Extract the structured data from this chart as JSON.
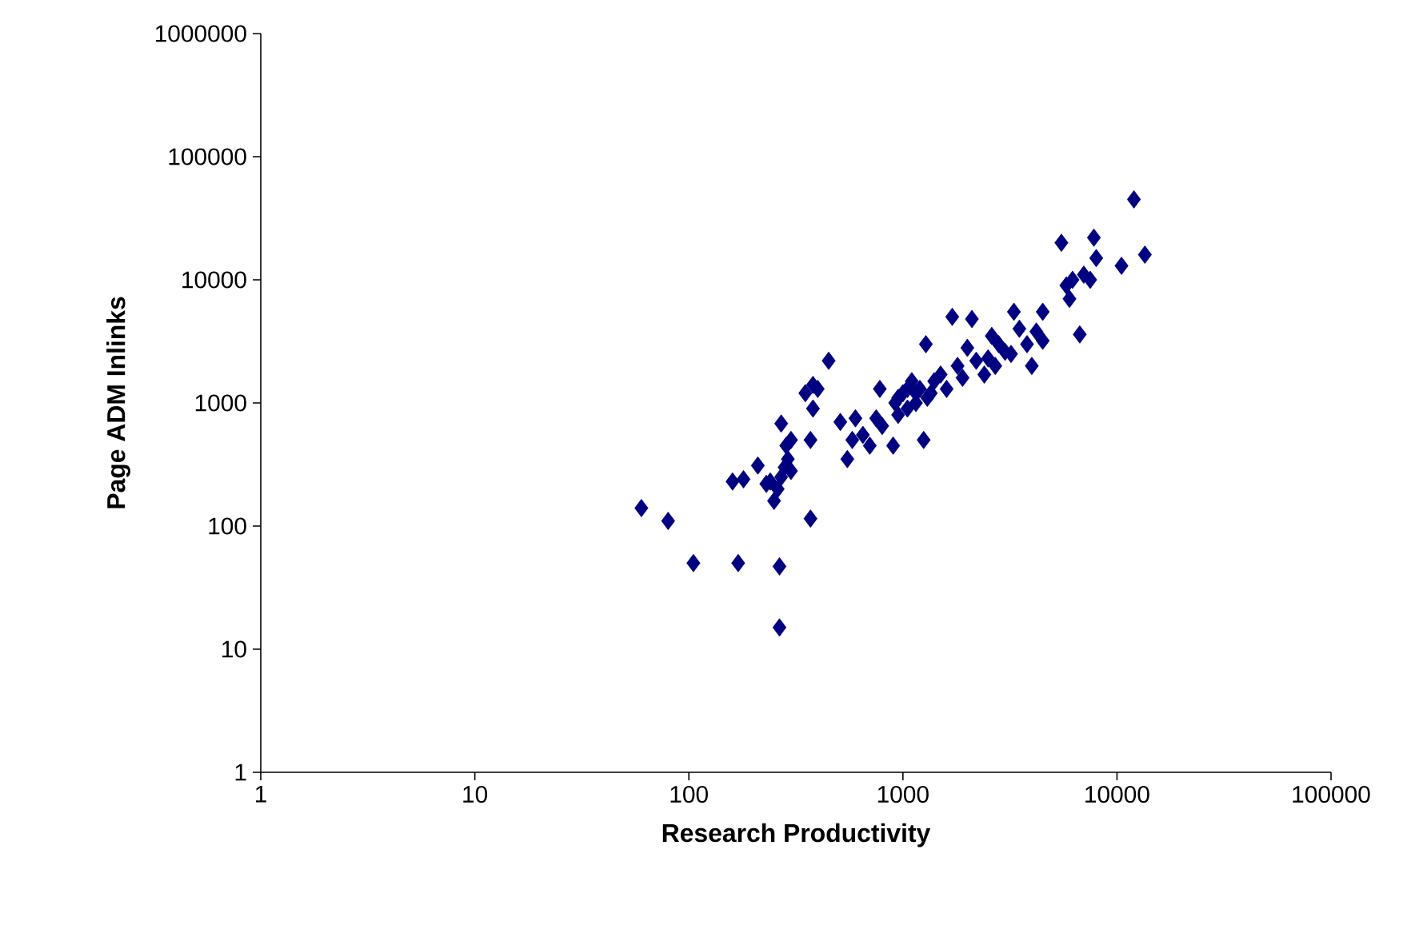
{
  "chart_data": {
    "type": "scatter",
    "xlabel": "Research Productivity",
    "ylabel": "Page ADM Inlinks",
    "log": "xy",
    "xlim": [
      1,
      100000
    ],
    "ylim": [
      1,
      1000000
    ],
    "xticks": [
      1,
      10,
      100,
      1000,
      10000,
      100000
    ],
    "yticks": [
      1,
      10,
      100,
      1000,
      10000,
      100000,
      1000000
    ],
    "grid": false,
    "marker": "diamond",
    "series": [
      {
        "color": "#000080",
        "x": [
          60,
          80,
          105,
          170,
          265,
          265,
          370,
          160,
          180,
          210,
          240,
          250,
          260,
          270,
          280,
          270,
          285,
          300,
          290,
          300,
          230,
          350,
          380,
          380,
          370,
          450,
          400,
          510,
          550,
          580,
          600,
          650,
          700,
          750,
          780,
          800,
          900,
          920,
          950,
          1000,
          1050,
          1100,
          1150,
          1200,
          1250,
          1280,
          1300,
          1350,
          1400,
          1500,
          1600,
          1700,
          1800,
          1900,
          2000,
          2100,
          2200,
          2400,
          2500,
          2600,
          2700,
          2800,
          3000,
          3200,
          3300,
          3500,
          3800,
          4000,
          4200,
          4500,
          4500,
          5500,
          5800,
          6000,
          6200,
          6700,
          7000,
          7500,
          7800,
          8000,
          10500,
          12000,
          13500,
          1050,
          1150,
          950
        ],
        "values": [
          140,
          110,
          50,
          50,
          47,
          15,
          115,
          230,
          240,
          310,
          230,
          160,
          200,
          250,
          300,
          680,
          450,
          500,
          350,
          280,
          220,
          1200,
          1400,
          900,
          500,
          2200,
          1300,
          700,
          350,
          500,
          750,
          550,
          450,
          750,
          1300,
          650,
          450,
          1000,
          800,
          1200,
          900,
          1500,
          1000,
          1300,
          500,
          3000,
          1100,
          1200,
          1500,
          1700,
          1300,
          5000,
          2000,
          1600,
          2800,
          4800,
          2200,
          1700,
          2300,
          3500,
          2000,
          3000,
          2600,
          2500,
          5500,
          4000,
          3000,
          2000,
          3800,
          5500,
          3200,
          20000,
          9000,
          7000,
          10000,
          3600,
          11000,
          10000,
          22000,
          15000,
          13000,
          45000,
          16000,
          1300,
          1200,
          1100
        ]
      }
    ]
  }
}
